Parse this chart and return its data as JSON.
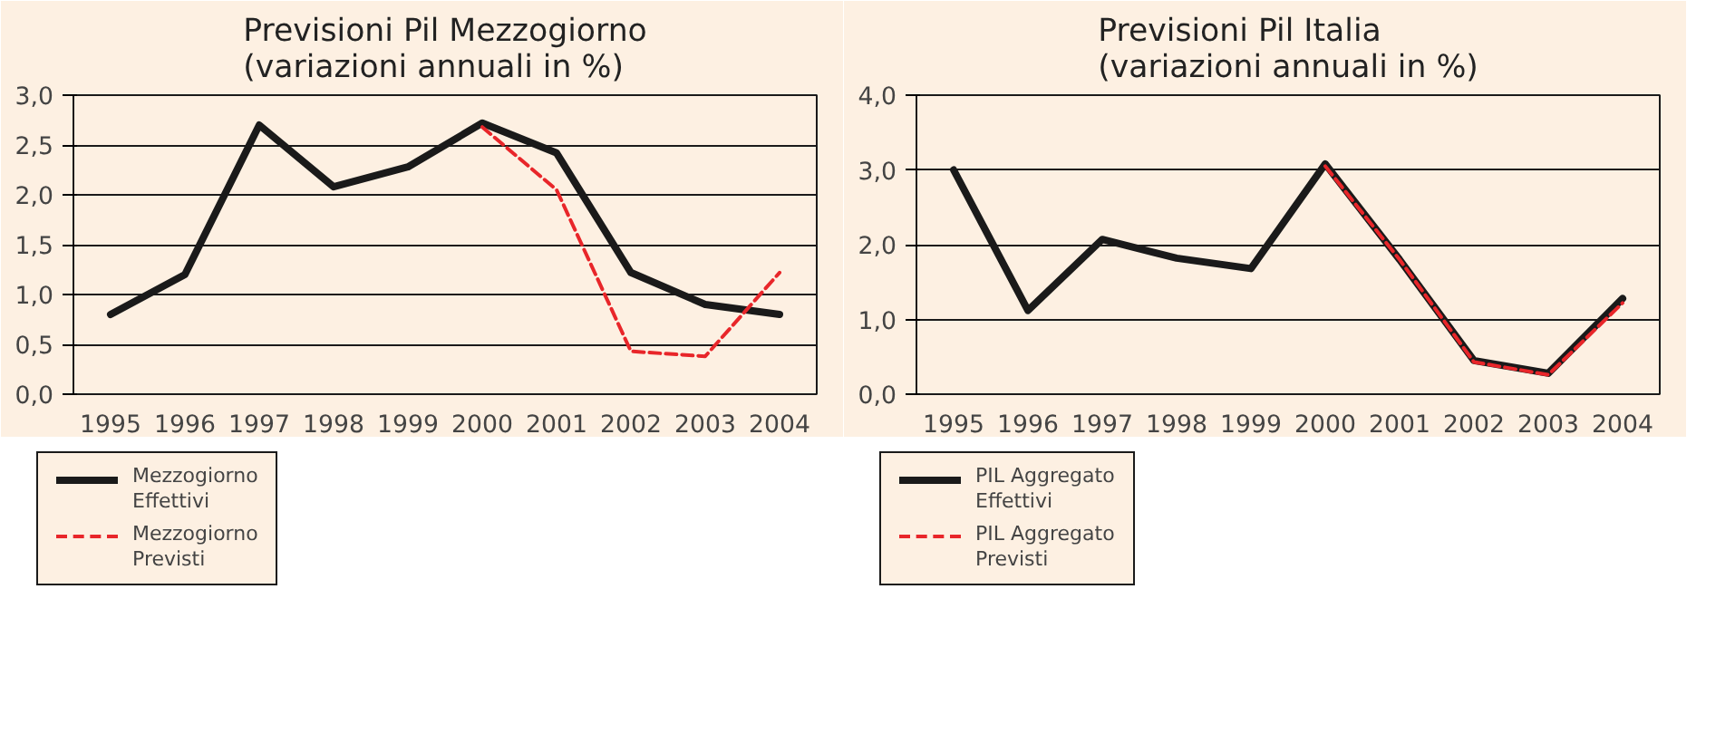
{
  "chart_data": [
    {
      "type": "line",
      "title": "Previsioni Pil Mezzogiorno\n(variazioni annuali in %)",
      "categories": [
        "1995",
        "1996",
        "1997",
        "1998",
        "1999",
        "2000",
        "2001",
        "2002",
        "2003",
        "2004"
      ],
      "series": [
        {
          "name": "Mezzogiorno\nEffettivi",
          "color": "#1a1a1a",
          "values": [
            0.8,
            1.2,
            2.7,
            2.08,
            2.28,
            2.72,
            2.42,
            1.22,
            0.9,
            0.8
          ]
        },
        {
          "name": "Mezzogiorno\nPrevisti",
          "color": "#e8262a",
          "line_style": "dashed",
          "values": [
            null,
            null,
            null,
            null,
            null,
            2.68,
            2.05,
            0.43,
            0.38,
            1.22
          ]
        }
      ],
      "ylim": [
        0,
        3
      ],
      "yticks": [
        {
          "value": 0,
          "label": "0,0"
        },
        {
          "value": 0.5,
          "label": "0,5"
        },
        {
          "value": 1,
          "label": "1,0"
        },
        {
          "value": 1.5,
          "label": "1,5"
        },
        {
          "value": 2,
          "label": "2,0"
        },
        {
          "value": 2.5,
          "label": "2,5"
        },
        {
          "value": 3,
          "label": "3,0"
        }
      ],
      "grid": "y",
      "legend": "bottom",
      "line_style": "solid"
    },
    {
      "type": "line",
      "title": "Previsioni Pil Italia\n(variazioni annuali in %)",
      "categories": [
        "1995",
        "1996",
        "1997",
        "1998",
        "1999",
        "2000",
        "2001",
        "2002",
        "2003",
        "2004"
      ],
      "series": [
        {
          "name": "PIL Aggregato\nEffettivi",
          "color": "#1a1a1a",
          "values": [
            3.0,
            1.12,
            2.07,
            1.82,
            1.68,
            3.08,
            1.8,
            0.45,
            0.28,
            1.28
          ]
        },
        {
          "name": "PIL Aggregato\nPrevisti",
          "color": "#e8262a",
          "line_style": "dashed",
          "values": [
            null,
            null,
            null,
            null,
            null,
            3.05,
            1.8,
            0.43,
            0.26,
            1.22
          ]
        }
      ],
      "ylim": [
        0,
        4
      ],
      "yticks": [
        {
          "value": 0,
          "label": "0,0"
        },
        {
          "value": 1,
          "label": "1,0"
        },
        {
          "value": 2,
          "label": "2,0"
        },
        {
          "value": 3,
          "label": "3,0"
        },
        {
          "value": 4,
          "label": "4,0"
        }
      ],
      "grid": "y",
      "legend": "bottom",
      "line_style": "solid"
    }
  ]
}
